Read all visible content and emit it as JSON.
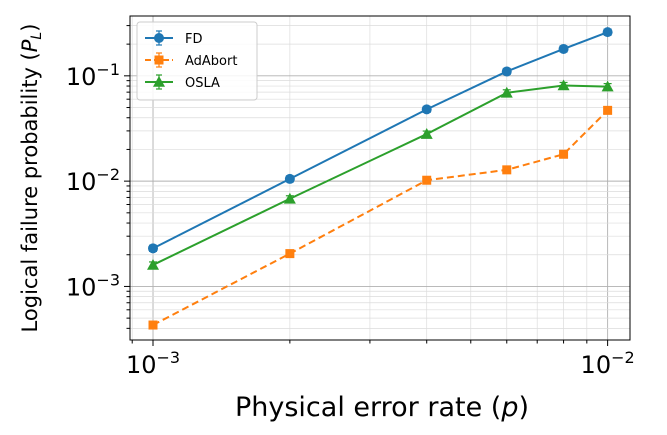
{
  "chart_data": {
    "type": "line",
    "title": "",
    "xlabel": "Physical error rate",
    "xlabel_var": "p",
    "ylabel": "Logical failure probability",
    "ylabel_var": "P",
    "ylabel_sub": "L",
    "xscale": "log",
    "yscale": "log",
    "xlim": [
      0.00089,
      0.0112
    ],
    "ylim": [
      0.00031,
      0.37
    ],
    "grid": true,
    "legend_position": "top-left",
    "x": [
      0.001,
      0.002,
      0.004,
      0.006,
      0.008,
      0.01
    ],
    "x_ticks": [
      {
        "value": 0.001,
        "base": "10",
        "exp": "−3"
      },
      {
        "value": 0.01,
        "base": "10",
        "exp": "−2"
      }
    ],
    "y_ticks": [
      {
        "value": 0.001,
        "base": "10",
        "exp": "−3"
      },
      {
        "value": 0.01,
        "base": "10",
        "exp": "−2"
      },
      {
        "value": 0.1,
        "base": "10",
        "exp": "−1"
      }
    ],
    "series": [
      {
        "name": "FD",
        "color": "#1f77b4",
        "marker": "circle",
        "dash": "solid",
        "values": [
          0.0023,
          0.0105,
          0.048,
          0.11,
          0.18,
          0.26
        ]
      },
      {
        "name": "AdAbort",
        "color": "#ff7f0e",
        "marker": "square",
        "dash": "dashed",
        "values": [
          0.00043,
          0.00205,
          0.0102,
          0.0128,
          0.018,
          0.047
        ]
      },
      {
        "name": "OSLA",
        "color": "#2ca02c",
        "marker": "triangle",
        "dash": "solid",
        "values": [
          0.0016,
          0.0068,
          0.028,
          0.069,
          0.081,
          0.079
        ]
      }
    ]
  }
}
